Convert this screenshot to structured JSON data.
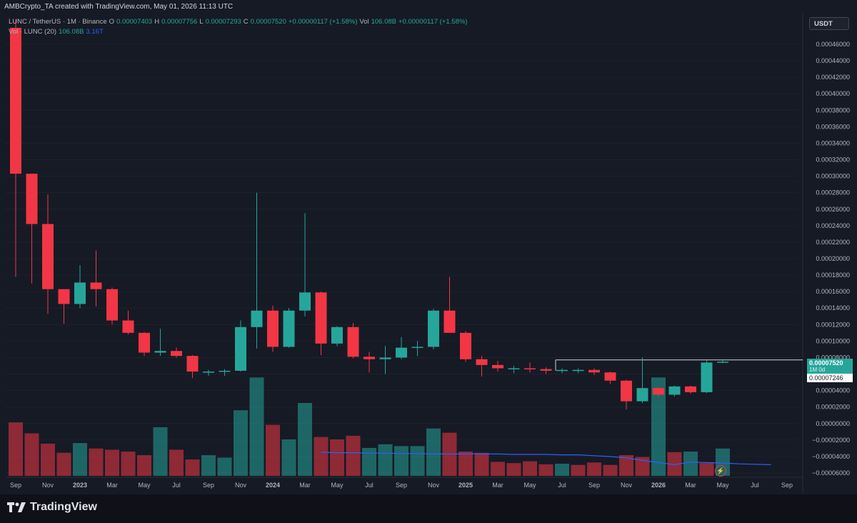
{
  "header": {
    "created_line": "AMBCrypto_TA created with TradingView.com, May 01, 2026 11:13 UTC"
  },
  "legend": {
    "symbol": "LUNC / TetherUS · 1M · Binance",
    "o_label": "O",
    "o_value": "0.00007403",
    "h_label": "H",
    "h_value": "0.00007756",
    "l_label": "L",
    "l_value": "0.00007293",
    "c_label": "C",
    "c_value": "0.00007520",
    "change": "+0.00000117 (+1.58%)",
    "vol_label": "Vol",
    "vol_value": "106.08B",
    "vol_change": "+0.00000117 (+1.58%)",
    "vol_ma_label": "Vol · LUNC (20)",
    "vol_ma_value1": "106.08B",
    "vol_ma_value2": "3.16T"
  },
  "unit_button": "USDT",
  "price_tags": {
    "current": "0.00007520",
    "current_sub": "1M 0d",
    "reference": "0.00007246"
  },
  "brand": {
    "name": "TradingView"
  },
  "colors": {
    "up": "#26a69a",
    "down": "#f23645",
    "vol_up": "#26a69a",
    "vol_down": "#f23645",
    "ma": "#2962ff"
  },
  "chart_data": {
    "type": "candlestick",
    "y_axis_ticks": [
      "0.00046000",
      "0.00044000",
      "0.00042000",
      "0.00040000",
      "0.00038000",
      "0.00036000",
      "0.00034000",
      "0.00032000",
      "0.00030000",
      "0.00028000",
      "0.00026000",
      "0.00024000",
      "0.00022000",
      "0.00020000",
      "0.00018000",
      "0.00016000",
      "0.00014000",
      "0.00012000",
      "0.00010000",
      "0.00008000",
      "0.00006000",
      "0.00004000",
      "0.00002000",
      "0.00000000",
      "−0.00002000",
      "−0.00004000",
      "−0.00006000"
    ],
    "ylim": [
      -6e-05,
      0.00046
    ],
    "x_axis_labels": [
      "Sep",
      "Nov",
      "2023",
      "Mar",
      "May",
      "Jul",
      "Sep",
      "Nov",
      "2024",
      "Mar",
      "May",
      "Jul",
      "Sep",
      "Nov",
      "2025",
      "Mar",
      "May",
      "Jul",
      "Sep",
      "Nov",
      "2026",
      "Mar",
      "May",
      "Jul",
      "Sep"
    ],
    "horizontal_line_level": 7.246e-05,
    "candles": [
      {
        "o": 0.00048,
        "h": 0.00049,
        "l": 0.000178,
        "c": 0.000303
      },
      {
        "o": 0.000303,
        "h": 0.000303,
        "l": 0.00017,
        "c": 0.000242
      },
      {
        "o": 0.000242,
        "h": 0.000278,
        "l": 0.000133,
        "c": 0.000163
      },
      {
        "o": 0.000163,
        "h": 0.000163,
        "l": 0.000121,
        "c": 0.000145
      },
      {
        "o": 0.000145,
        "h": 0.000192,
        "l": 0.00014,
        "c": 0.000171
      },
      {
        "o": 0.000171,
        "h": 0.00021,
        "l": 0.000142,
        "c": 0.000163
      },
      {
        "o": 0.000163,
        "h": 0.000165,
        "l": 0.00012,
        "c": 0.000125
      },
      {
        "o": 0.000125,
        "h": 0.000137,
        "l": 0.000108,
        "c": 0.00011
      },
      {
        "o": 0.00011,
        "h": 0.000111,
        "l": 8.2e-05,
        "c": 8.6e-05
      },
      {
        "o": 8.6e-05,
        "h": 0.000115,
        "l": 8.2e-05,
        "c": 8.8e-05
      },
      {
        "o": 8.8e-05,
        "h": 9.2e-05,
        "l": 8e-05,
        "c": 8.2e-05
      },
      {
        "o": 8.2e-05,
        "h": 8.3e-05,
        "l": 5.5e-05,
        "c": 6.3e-05
      },
      {
        "o": 6.3e-05,
        "h": 6.5e-05,
        "l": 5.8e-05,
        "c": 6.3e-05
      },
      {
        "o": 6.3e-05,
        "h": 6.6e-05,
        "l": 5.8e-05,
        "c": 6.4e-05
      },
      {
        "o": 6.4e-05,
        "h": 0.000125,
        "l": 6.3e-05,
        "c": 0.000117
      },
      {
        "o": 0.000117,
        "h": 0.00028,
        "l": 9.1e-05,
        "c": 0.000137
      },
      {
        "o": 0.000137,
        "h": 0.000143,
        "l": 8.7e-05,
        "c": 9.3e-05
      },
      {
        "o": 9.3e-05,
        "h": 0.00014,
        "l": 9.2e-05,
        "c": 0.000137
      },
      {
        "o": 0.000137,
        "h": 0.000255,
        "l": 0.00013,
        "c": 0.000159
      },
      {
        "o": 0.000159,
        "h": 0.00016,
        "l": 8.3e-05,
        "c": 9.7e-05
      },
      {
        "o": 9.7e-05,
        "h": 0.000118,
        "l": 9.4e-05,
        "c": 0.000117
      },
      {
        "o": 0.000117,
        "h": 0.000122,
        "l": 7.9e-05,
        "c": 8.1e-05
      },
      {
        "o": 8.1e-05,
        "h": 8.7e-05,
        "l": 6.2e-05,
        "c": 7.8e-05
      },
      {
        "o": 7.8e-05,
        "h": 9.4e-05,
        "l": 6e-05,
        "c": 8e-05
      },
      {
        "o": 8e-05,
        "h": 0.000105,
        "l": 7.8e-05,
        "c": 9.2e-05
      },
      {
        "o": 9.2e-05,
        "h": 0.0001,
        "l": 8.2e-05,
        "c": 9.3e-05
      },
      {
        "o": 9.3e-05,
        "h": 0.000139,
        "l": 9e-05,
        "c": 0.000137
      },
      {
        "o": 0.000137,
        "h": 0.000178,
        "l": 0.000112,
        "c": 0.00011
      },
      {
        "o": 0.00011,
        "h": 0.000112,
        "l": 7.5e-05,
        "c": 7.8e-05
      },
      {
        "o": 7.8e-05,
        "h": 8.2e-05,
        "l": 5.7e-05,
        "c": 7.1e-05
      },
      {
        "o": 7.1e-05,
        "h": 7.6e-05,
        "l": 6.3e-05,
        "c": 6.7e-05
      },
      {
        "o": 6.7e-05,
        "h": 7e-05,
        "l": 6.1e-05,
        "c": 6.7e-05
      },
      {
        "o": 6.7e-05,
        "h": 7.4e-05,
        "l": 6.2e-05,
        "c": 6.6e-05
      },
      {
        "o": 6.6e-05,
        "h": 6.8e-05,
        "l": 6e-05,
        "c": 6.4e-05
      },
      {
        "o": 6.4e-05,
        "h": 6.7e-05,
        "l": 6.1e-05,
        "c": 6.5e-05
      },
      {
        "o": 6.5e-05,
        "h": 6.7e-05,
        "l": 6.1e-05,
        "c": 6.5e-05
      },
      {
        "o": 6.5e-05,
        "h": 6.7e-05,
        "l": 5.9e-05,
        "c": 6.2e-05
      },
      {
        "o": 6.2e-05,
        "h": 6.3e-05,
        "l": 4.8e-05,
        "c": 5.2e-05
      },
      {
        "o": 5.2e-05,
        "h": 5.3e-05,
        "l": 1.7e-05,
        "c": 2.7e-05
      },
      {
        "o": 2.7e-05,
        "h": 8e-05,
        "l": 2.5e-05,
        "c": 4.3e-05
      },
      {
        "o": 4.3e-05,
        "h": 4.4e-05,
        "l": 3.3e-05,
        "c": 3.5e-05
      },
      {
        "o": 3.5e-05,
        "h": 4.6e-05,
        "l": 3.3e-05,
        "c": 4.5e-05
      },
      {
        "o": 4.5e-05,
        "h": 4.6e-05,
        "l": 3.6e-05,
        "c": 3.8e-05
      },
      {
        "o": 3.8e-05,
        "h": 7.7e-05,
        "l": 3.7e-05,
        "c": 7.4e-05
      },
      {
        "o": 7.4e-05,
        "h": 7.8e-05,
        "l": 7.3e-05,
        "c": 7.5e-05
      }
    ],
    "volume_relative": [
      0.88,
      0.7,
      0.53,
      0.38,
      0.54,
      0.45,
      0.43,
      0.4,
      0.34,
      0.8,
      0.43,
      0.27,
      0.34,
      0.3,
      1.08,
      1.62,
      0.84,
      0.6,
      1.2,
      0.64,
      0.6,
      0.66,
      0.46,
      0.52,
      0.49,
      0.49,
      0.78,
      0.71,
      0.4,
      0.38,
      0.23,
      0.21,
      0.24,
      0.19,
      0.2,
      0.18,
      0.22,
      0.18,
      0.34,
      0.31,
      1.62,
      0.39,
      0.4,
      0.21,
      0.45
    ],
    "volume_up": [
      false,
      false,
      false,
      false,
      true,
      false,
      false,
      false,
      false,
      true,
      false,
      false,
      true,
      true,
      true,
      true,
      false,
      true,
      true,
      false,
      false,
      false,
      true,
      true,
      true,
      true,
      true,
      false,
      false,
      false,
      false,
      false,
      false,
      false,
      true,
      false,
      false,
      false,
      false,
      false,
      true,
      false,
      true,
      false,
      true
    ],
    "volume_ma_relative": [
      0.34,
      0.33,
      0.33,
      0.32,
      0.32,
      0.31,
      0.31,
      0.3,
      0.3,
      0.3,
      0.3,
      0.3,
      0.29,
      0.29,
      0.29,
      0.28,
      0.28,
      0.26,
      0.24,
      0.21,
      0.15,
      0.1,
      0.05,
      0.11,
      0.1,
      0.09,
      0.07,
      0.06,
      0.05
    ]
  }
}
